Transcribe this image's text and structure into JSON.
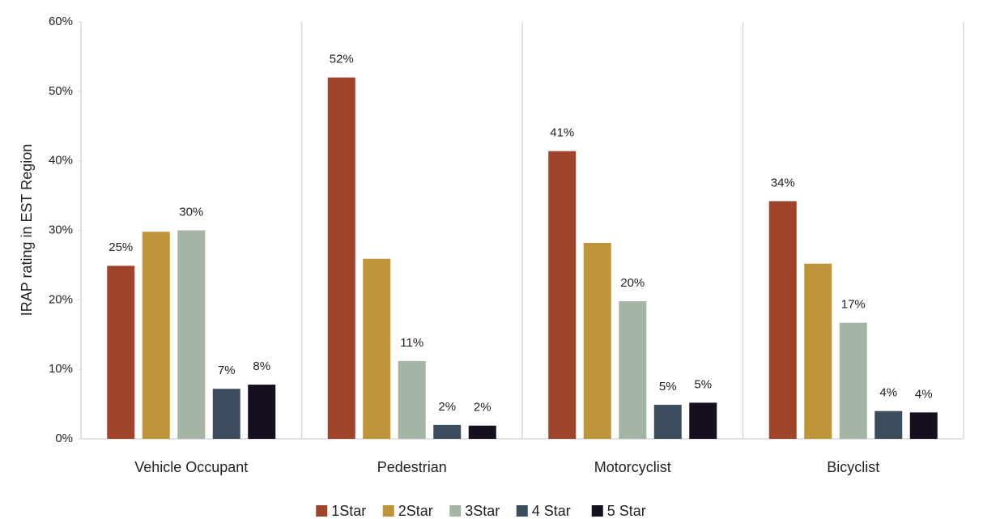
{
  "chart_data": {
    "type": "bar",
    "y_label": "IRAP rating in EST Region",
    "categories": [
      "Vehicle Occupant",
      "Pedestrian",
      "Motorcyclist",
      "Bicyclist"
    ],
    "series": [
      {
        "name": "1Star",
        "color": "#a0432b",
        "values": [
          24.9,
          52.0,
          41.4,
          34.2
        ],
        "value_labels": [
          "25%",
          "52%",
          "41%",
          "34%"
        ]
      },
      {
        "name": "2Star",
        "color": "#bf953a",
        "values": [
          29.8,
          25.9,
          28.2,
          25.2
        ]
      },
      {
        "name": "3Star",
        "color": "#a5b5a5",
        "values": [
          30.0,
          11.2,
          19.8,
          16.7
        ],
        "value_labels": [
          "30%",
          "11%",
          "20%",
          "17%"
        ]
      },
      {
        "name": "4 Star",
        "color": "#3c4e5d",
        "values": [
          7.2,
          2.0,
          4.9,
          4.0
        ],
        "value_labels": [
          "7%",
          "2%",
          "5%",
          "4%"
        ]
      },
      {
        "name": "5 Star",
        "color": "#160f20",
        "values": [
          7.8,
          1.9,
          5.2,
          3.8
        ],
        "value_labels": [
          "8%",
          "2%",
          "5%",
          "4%"
        ]
      }
    ],
    "ylim": [
      0,
      60
    ],
    "yticks": [
      {
        "value": 0,
        "label": "0%"
      },
      {
        "value": 10,
        "label": "10%"
      },
      {
        "value": 20,
        "label": "20%"
      },
      {
        "value": 30,
        "label": "30%"
      },
      {
        "value": 40,
        "label": "40%"
      },
      {
        "value": 50,
        "label": "50%"
      },
      {
        "value": 60,
        "label": "60%"
      }
    ],
    "legend": "bottom"
  }
}
